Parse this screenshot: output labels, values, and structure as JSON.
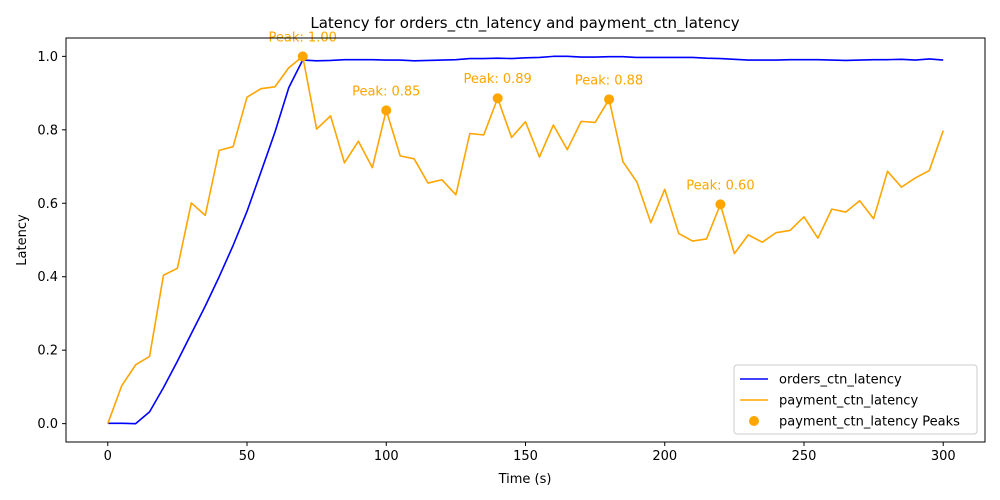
{
  "chart_data": {
    "type": "line",
    "title": "Latency for orders_ctn_latency and payment_ctn_latency",
    "xlabel": "Time (s)",
    "ylabel": "Latency",
    "xlim": [
      -15,
      315
    ],
    "ylim": [
      -0.05,
      1.05
    ],
    "x_ticks": [
      0,
      50,
      100,
      150,
      200,
      250,
      300
    ],
    "y_ticks": [
      0.0,
      0.2,
      0.4,
      0.6,
      0.8,
      1.0
    ],
    "x_tick_labels": [
      "0",
      "50",
      "100",
      "150",
      "200",
      "250",
      "300"
    ],
    "y_tick_labels": [
      "0.0",
      "0.2",
      "0.4",
      "0.6",
      "0.8",
      "1.0"
    ],
    "grid": false,
    "legend_position": "lower-right",
    "series": [
      {
        "name": "orders_ctn_latency",
        "color": "#0000ff",
        "x": [
          0,
          5,
          10,
          15,
          20,
          25,
          30,
          35,
          40,
          45,
          50,
          55,
          60,
          65,
          70,
          75,
          80,
          85,
          90,
          95,
          100,
          105,
          110,
          115,
          120,
          125,
          130,
          135,
          140,
          145,
          150,
          155,
          160,
          165,
          170,
          175,
          180,
          185,
          190,
          195,
          200,
          205,
          210,
          215,
          220,
          225,
          230,
          235,
          240,
          245,
          250,
          255,
          260,
          265,
          270,
          275,
          280,
          285,
          290,
          295,
          300
        ],
        "y": [
          0.001,
          0.001,
          0.0,
          0.032,
          0.098,
          0.17,
          0.245,
          0.32,
          0.4,
          0.485,
          0.578,
          0.685,
          0.793,
          0.915,
          0.99,
          0.988,
          0.989,
          0.991,
          0.991,
          0.991,
          0.99,
          0.99,
          0.988,
          0.989,
          0.99,
          0.991,
          0.994,
          0.994,
          0.995,
          0.994,
          0.996,
          0.997,
          1.0,
          1.0,
          0.998,
          0.998,
          0.999,
          0.999,
          0.997,
          0.997,
          0.997,
          0.997,
          0.997,
          0.995,
          0.994,
          0.992,
          0.99,
          0.99,
          0.99,
          0.991,
          0.991,
          0.991,
          0.99,
          0.989,
          0.99,
          0.991,
          0.991,
          0.992,
          0.99,
          0.993,
          0.99
        ]
      },
      {
        "name": "payment_ctn_latency",
        "color": "#ffa500",
        "x": [
          0,
          5,
          10,
          15,
          20,
          25,
          30,
          35,
          40,
          45,
          50,
          55,
          60,
          65,
          70,
          75,
          80,
          85,
          90,
          95,
          100,
          105,
          110,
          115,
          120,
          125,
          130,
          135,
          140,
          145,
          150,
          155,
          160,
          165,
          170,
          175,
          180,
          185,
          190,
          195,
          200,
          205,
          210,
          215,
          220,
          225,
          230,
          235,
          240,
          245,
          250,
          255,
          260,
          265,
          270,
          275,
          280,
          285,
          290,
          295,
          300
        ],
        "y": [
          0.0,
          0.103,
          0.16,
          0.183,
          0.404,
          0.423,
          0.601,
          0.567,
          0.744,
          0.754,
          0.889,
          0.912,
          0.917,
          0.969,
          1.0,
          0.802,
          0.838,
          0.71,
          0.769,
          0.697,
          0.853,
          0.729,
          0.721,
          0.655,
          0.664,
          0.623,
          0.79,
          0.786,
          0.886,
          0.779,
          0.822,
          0.726,
          0.813,
          0.746,
          0.823,
          0.82,
          0.883,
          0.713,
          0.658,
          0.547,
          0.638,
          0.518,
          0.497,
          0.503,
          0.597,
          0.463,
          0.514,
          0.494,
          0.52,
          0.526,
          0.563,
          0.505,
          0.584,
          0.576,
          0.607,
          0.558,
          0.687,
          0.644,
          0.669,
          0.689,
          0.798
        ]
      }
    ],
    "peaks": {
      "name": "payment_ctn_latency Peaks",
      "color": "#ffa500",
      "points": [
        {
          "x": 70,
          "y": 1.0,
          "label": "Peak: 1.00"
        },
        {
          "x": 100,
          "y": 0.853,
          "label": "Peak: 0.85"
        },
        {
          "x": 140,
          "y": 0.886,
          "label": "Peak: 0.89"
        },
        {
          "x": 180,
          "y": 0.883,
          "label": "Peak: 0.88"
        },
        {
          "x": 220,
          "y": 0.597,
          "label": "Peak: 0.60"
        }
      ]
    }
  }
}
